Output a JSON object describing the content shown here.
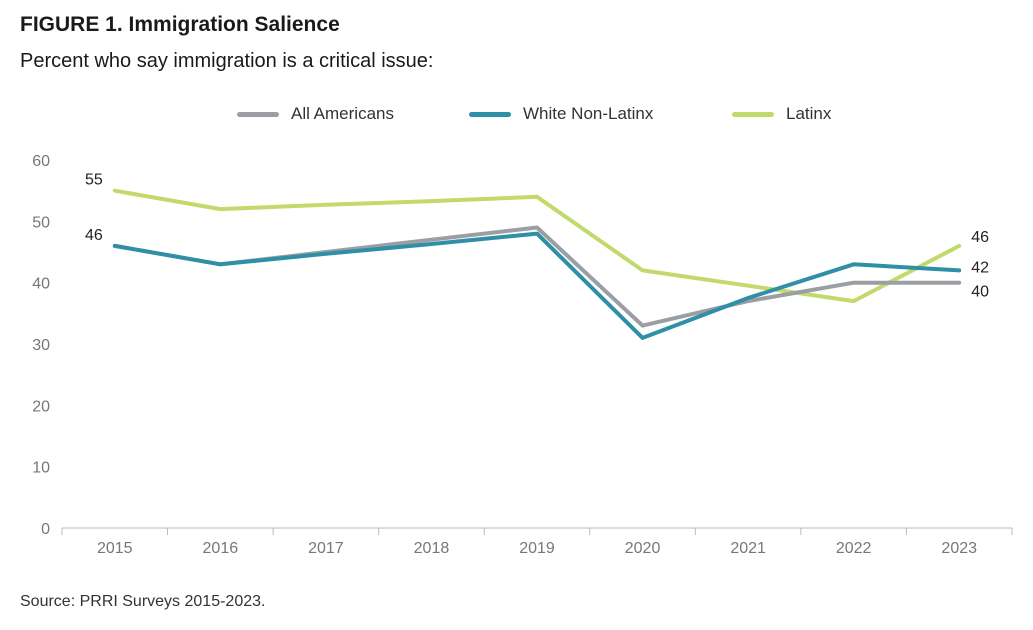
{
  "header": {
    "title": "FIGURE 1. Immigration Salience",
    "subtitle": "Percent who say immigration is a critical issue:"
  },
  "footer": {
    "source": "Source: PRRI Surveys 2015-2023."
  },
  "colors": {
    "all_americans": "#9b9ea3",
    "white_non_latinx": "#2e8fa6",
    "latinx": "#c2d96b",
    "axis": "#bbbbbb",
    "tick_text": "#777777"
  },
  "chart_data": {
    "type": "line",
    "title": "FIGURE 1. Immigration Salience",
    "subtitle": "Percent who say immigration is a critical issue:",
    "xlabel": "",
    "ylabel": "",
    "x": [
      "2015",
      "2016",
      "2017",
      "2018",
      "2019",
      "2020",
      "2021",
      "2022",
      "2023"
    ],
    "ylim": [
      0,
      60
    ],
    "yticks": [
      0,
      10,
      20,
      30,
      40,
      50,
      60
    ],
    "grid": false,
    "legend_position": "top-center",
    "series": [
      {
        "name": "All Americans",
        "color": "#9b9ea3",
        "values": [
          46,
          43,
          45,
          47,
          49,
          33,
          37,
          40,
          40
        ]
      },
      {
        "name": "White Non-Latinx",
        "color": "#2e8fa6",
        "values": [
          46,
          43,
          44.7,
          46.3,
          48,
          31,
          37.5,
          43,
          42
        ]
      },
      {
        "name": "Latinx",
        "color": "#c2d96b",
        "values": [
          55,
          52,
          52.7,
          53.3,
          54,
          42,
          39.5,
          37,
          46
        ]
      }
    ],
    "data_labels": [
      {
        "series": "Latinx",
        "x": "2015",
        "text": "55"
      },
      {
        "series": "All Americans",
        "x": "2015",
        "text": "46"
      },
      {
        "series": "Latinx",
        "x": "2023",
        "text": "46"
      },
      {
        "series": "White Non-Latinx",
        "x": "2023",
        "text": "42"
      },
      {
        "series": "All Americans",
        "x": "2023",
        "text": "40"
      }
    ]
  }
}
